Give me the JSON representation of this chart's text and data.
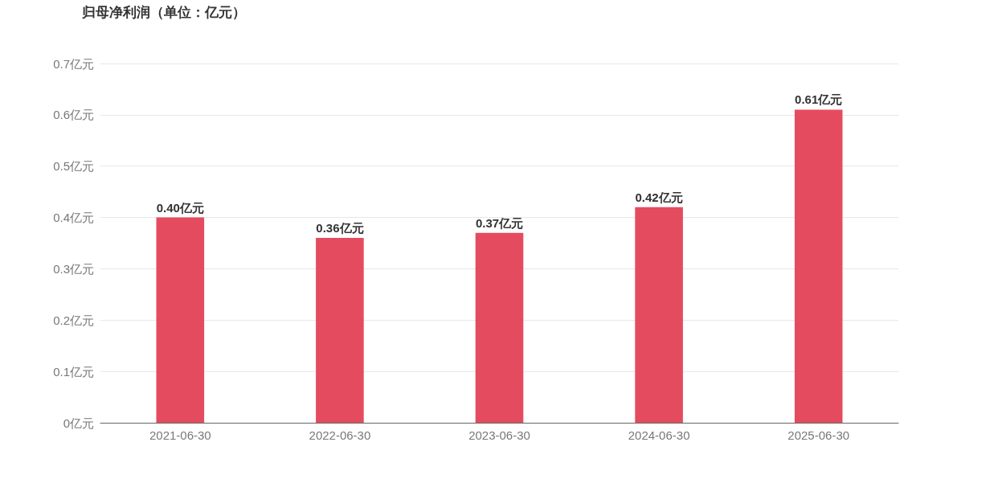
{
  "chart_data": {
    "type": "bar",
    "title": "归母净利润（单位：亿元）",
    "categories": [
      "2021-06-30",
      "2022-06-30",
      "2023-06-30",
      "2024-06-30",
      "2025-06-30"
    ],
    "values": [
      0.4,
      0.36,
      0.37,
      0.42,
      0.61
    ],
    "value_labels": [
      "0.40亿元",
      "0.36亿元",
      "0.37亿元",
      "0.42亿元",
      "0.61亿元"
    ],
    "color": "#e54b5e",
    "ylim": [
      0,
      0.7
    ],
    "yticks": [
      {
        "value": 0,
        "label": "0亿元"
      },
      {
        "value": 0.1,
        "label": "0.1亿元"
      },
      {
        "value": 0.2,
        "label": "0.2亿元"
      },
      {
        "value": 0.3,
        "label": "0.3亿元"
      },
      {
        "value": 0.4,
        "label": "0.4亿元"
      },
      {
        "value": 0.5,
        "label": "0.5亿元"
      },
      {
        "value": 0.6,
        "label": "0.6亿元"
      },
      {
        "value": 0.7,
        "label": "0.7亿元"
      }
    ],
    "grid": "y"
  }
}
